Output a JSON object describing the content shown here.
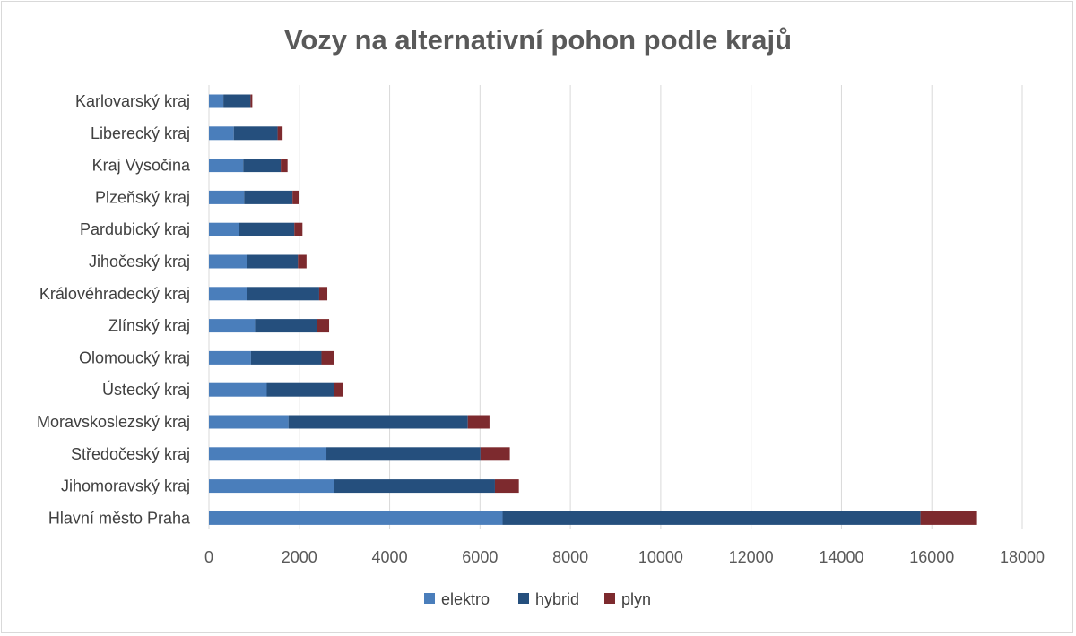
{
  "chart_data": {
    "type": "bar",
    "orientation": "horizontal",
    "stacked": true,
    "title": "Vozy na alternativní pohon podle krajů",
    "categories": [
      "Karlovarský kraj",
      "Liberecký kraj",
      "Kraj Vysočina",
      "Plzeňský kraj",
      "Pardubický kraj",
      "Jihočeský kraj",
      "Královéhradecký kraj",
      "Zlínský kraj",
      "Olomoucký kraj",
      "Ústecký kraj",
      "Moravskoslezský kraj",
      "Středočeský kraj",
      "Jihomoravský kraj",
      "Hlavní město Praha"
    ],
    "series": [
      {
        "name": "elektro",
        "color": "#4a7ebb",
        "values": [
          320,
          550,
          760,
          780,
          670,
          850,
          850,
          1020,
          930,
          1280,
          1760,
          2600,
          2770,
          6500
        ]
      },
      {
        "name": "hybrid",
        "color": "#254f7d",
        "values": [
          600,
          970,
          830,
          1070,
          1220,
          1120,
          1590,
          1380,
          1560,
          1490,
          3970,
          3410,
          3560,
          9250
        ]
      },
      {
        "name": "plyn",
        "color": "#7d2a2e",
        "values": [
          40,
          110,
          150,
          140,
          180,
          190,
          180,
          260,
          270,
          200,
          480,
          650,
          530,
          1250
        ]
      }
    ],
    "xlim": [
      0,
      18000
    ],
    "xticks": [
      "0",
      "2000",
      "4000",
      "6000",
      "8000",
      "10000",
      "12000",
      "14000",
      "16000",
      "18000"
    ],
    "grid": true,
    "legend_position": "bottom"
  }
}
